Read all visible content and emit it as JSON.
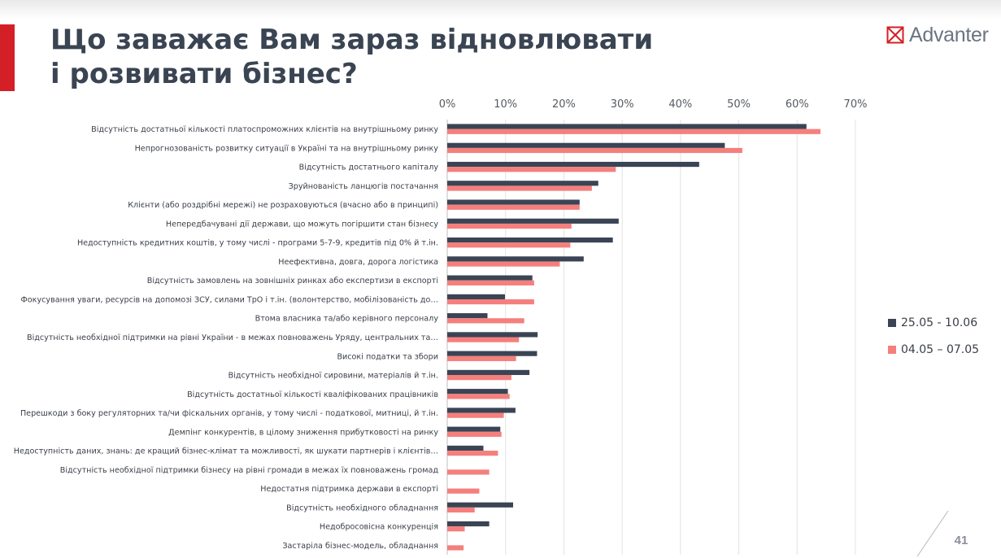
{
  "slide": {
    "title_line1": "Що заважає Вам зараз відновлювати",
    "title_line2": "і розвивати бізнес?",
    "logo_text": "Advanter",
    "page_number": "41",
    "accent_color": "#d41f26"
  },
  "chart_data": {
    "type": "bar",
    "orientation": "horizontal",
    "xlim": [
      0,
      70
    ],
    "x_unit": "%",
    "x_ticks": [
      "0%",
      "10%",
      "20%",
      "30%",
      "40%",
      "50%",
      "60%",
      "70%"
    ],
    "x_tick_values": [
      0,
      10,
      20,
      30,
      40,
      50,
      60,
      70
    ],
    "grid": true,
    "legend_position": "right",
    "categories": [
      "Відсутність достатньої кількості платоспроможних клієнтів на внутрішньому ринку",
      "Непрогнозованість розвитку ситуації в Україні та на внутрішньому ринку",
      "Відсутність достатнього капіталу",
      "Зруйнованість ланцюгів постачання",
      "Клієнти (або роздрібні мережі) не розраховуються (вчасно або в принципі)",
      "Непередбачувані дії держави, що можуть погіршити стан бізнесу",
      "Недоступність кредитних коштів, у тому числі - програми 5-7-9, кредитів під 0% й т.ін.",
      "Неефективна, довга, дорога логістика",
      "Відсутність замовлень на зовнішніх ринках або експертизи в експорті",
      "Фокусування уваги, ресурсів на допомозі ЗСУ, силами ТрО і т.ін. (волонтерство, мобілізованість до…",
      "Втома власника та/або керівного персоналу",
      "Відсутність необхідної підтримки на рівні України - в межах повноважень Уряду, центральних та…",
      "Високі податки та збори",
      "Відсутність необхідної сировини, матеріалів й т.ін.",
      "Відсутність достатньої кількості кваліфікованих працівників",
      "Перешкоди з боку регуляторних та/чи фіскальних органів, у тому числі - податкової, митниці, й т.ін.",
      "Демпінг конкурентів, в цілому зниження прибутковості на ринку",
      "Недоступність даних, знань: де кращий бізнес-клімат та можливості, як шукати партнерів і клієнтів…",
      "Відсутність необхідної підтримки бізнесу на рівні громади в межах їх повноважень громад",
      "Недостатня підтримка держави в експорті",
      "Відсутність необхідного обладнання",
      "Недобросовісна конкуренція",
      "Застаріла бізнес-модель, обладнання"
    ],
    "series": [
      {
        "name": "25.05 - 10.06",
        "color": "#3a4454",
        "values": [
          61.6,
          47.6,
          43.2,
          25.9,
          22.7,
          29.4,
          28.4,
          23.4,
          14.6,
          9.9,
          6.9,
          15.5,
          15.4,
          14.1,
          10.4,
          11.7,
          9.1,
          6.2,
          0,
          0,
          11.3,
          7.2,
          0
        ]
      },
      {
        "name": "04.05 – 07.05",
        "color": "#f47f7d",
        "values": [
          64.0,
          50.6,
          28.9,
          24.8,
          22.7,
          21.3,
          21.1,
          19.3,
          14.9,
          14.9,
          13.2,
          12.3,
          11.8,
          11.0,
          10.7,
          9.7,
          9.3,
          8.7,
          7.2,
          5.5,
          4.7,
          3.0,
          2.8
        ]
      }
    ]
  }
}
